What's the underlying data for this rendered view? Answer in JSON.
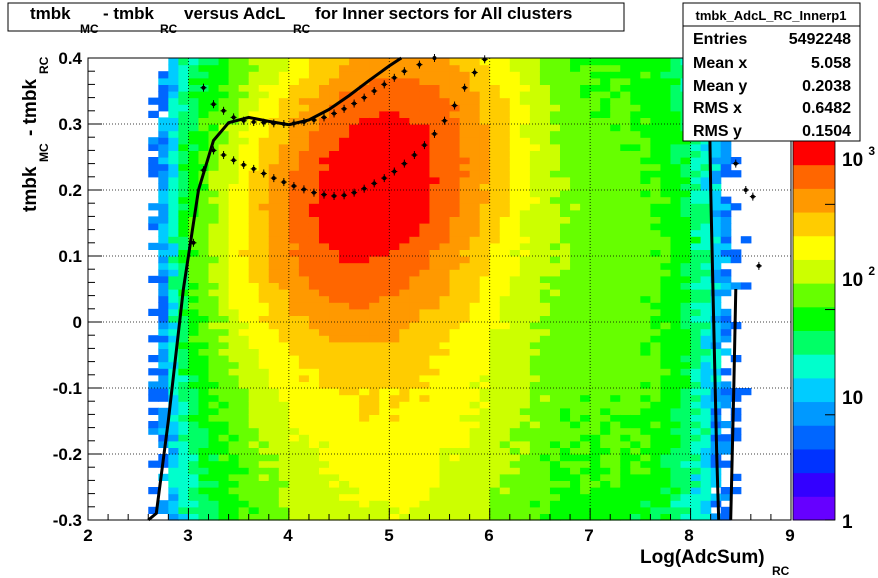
{
  "chart_data": {
    "type": "heatmap",
    "title_parts": [
      "tmbk",
      "MC",
      "- tmbk",
      "RC",
      "versus AdcL",
      "RC",
      "for Inner sectors for All clusters"
    ],
    "xlabel_parts": [
      "Log(AdcSum)",
      "RC"
    ],
    "ylabel_parts": [
      "tmbk",
      "MC",
      "- tmbk",
      "RC"
    ],
    "xlim": [
      2,
      9
    ],
    "ylim": [
      -0.3,
      0.4
    ],
    "x_ticks": [
      "2",
      "3",
      "4",
      "5",
      "6",
      "7",
      "8",
      "9"
    ],
    "y_ticks": [
      "-0.3",
      "-0.2",
      "-0.1",
      "0",
      "0.1",
      "0.2",
      "0.3",
      "0.4"
    ],
    "grid": true,
    "colorbar": {
      "scale": "log",
      "range": [
        1,
        4000
      ],
      "ticks": [
        {
          "base": "1",
          "exp": ""
        },
        {
          "base": "10",
          "exp": ""
        },
        {
          "base": "10",
          "exp": "2"
        },
        {
          "base": "10",
          "exp": "3"
        }
      ]
    },
    "palette": [
      "#6600ff",
      "#3300ff",
      "#0033ff",
      "#0066ff",
      "#0099ff",
      "#00ccff",
      "#00ffcc",
      "#00ff66",
      "#00ff00",
      "#66ff00",
      "#ccff00",
      "#ffff00",
      "#ffcc00",
      "#ff9900",
      "#ff6600",
      "#ff0000"
    ],
    "stats": {
      "name": "tmbk_AdcL_RC_Innerp1",
      "rows": [
        {
          "label": "Entries",
          "value": "5492248"
        },
        {
          "label": "Mean x",
          "value": "5.058"
        },
        {
          "label": "Mean y",
          "value": "0.2038"
        },
        {
          "label": "RMS x",
          "value": "0.6482"
        },
        {
          "label": "RMS y",
          "value": "0.1504"
        }
      ]
    },
    "profile_points": [
      {
        "x": 3.15,
        "y": 0.355
      },
      {
        "x": 3.25,
        "y": 0.33
      },
      {
        "x": 3.35,
        "y": 0.32
      },
      {
        "x": 3.45,
        "y": 0.31
      },
      {
        "x": 3.55,
        "y": 0.305
      },
      {
        "x": 3.65,
        "y": 0.303
      },
      {
        "x": 3.75,
        "y": 0.302
      },
      {
        "x": 3.85,
        "y": 0.301
      },
      {
        "x": 3.95,
        "y": 0.3
      },
      {
        "x": 4.05,
        "y": 0.301
      },
      {
        "x": 4.15,
        "y": 0.303
      },
      {
        "x": 4.25,
        "y": 0.306
      },
      {
        "x": 4.35,
        "y": 0.31
      },
      {
        "x": 4.45,
        "y": 0.316
      },
      {
        "x": 4.55,
        "y": 0.323
      },
      {
        "x": 4.65,
        "y": 0.331
      },
      {
        "x": 4.75,
        "y": 0.34
      },
      {
        "x": 4.85,
        "y": 0.35
      },
      {
        "x": 4.95,
        "y": 0.36
      },
      {
        "x": 5.05,
        "y": 0.37
      },
      {
        "x": 5.15,
        "y": 0.38
      },
      {
        "x": 5.3,
        "y": 0.39
      },
      {
        "x": 5.45,
        "y": 0.4
      },
      {
        "x": 3.05,
        "y": 0.12
      },
      {
        "x": 3.15,
        "y": 0.23
      },
      {
        "x": 3.25,
        "y": 0.26
      },
      {
        "x": 3.35,
        "y": 0.253
      },
      {
        "x": 3.45,
        "y": 0.245
      },
      {
        "x": 3.55,
        "y": 0.238
      },
      {
        "x": 3.65,
        "y": 0.232
      },
      {
        "x": 3.75,
        "y": 0.225
      },
      {
        "x": 3.85,
        "y": 0.218
      },
      {
        "x": 3.95,
        "y": 0.212
      },
      {
        "x": 4.05,
        "y": 0.206
      },
      {
        "x": 4.15,
        "y": 0.201
      },
      {
        "x": 4.25,
        "y": 0.196
      },
      {
        "x": 4.35,
        "y": 0.193
      },
      {
        "x": 4.45,
        "y": 0.191
      },
      {
        "x": 4.55,
        "y": 0.192
      },
      {
        "x": 4.65,
        "y": 0.196
      },
      {
        "x": 4.75,
        "y": 0.202
      },
      {
        "x": 4.85,
        "y": 0.21
      },
      {
        "x": 4.95,
        "y": 0.218
      },
      {
        "x": 5.05,
        "y": 0.228
      },
      {
        "x": 5.15,
        "y": 0.24
      },
      {
        "x": 5.25,
        "y": 0.253
      },
      {
        "x": 5.35,
        "y": 0.268
      },
      {
        "x": 5.45,
        "y": 0.285
      },
      {
        "x": 5.55,
        "y": 0.305
      },
      {
        "x": 5.65,
        "y": 0.328
      },
      {
        "x": 5.75,
        "y": 0.355
      },
      {
        "x": 5.85,
        "y": 0.378
      },
      {
        "x": 5.95,
        "y": 0.398
      },
      {
        "x": 8.55,
        "y": 0.2
      },
      {
        "x": 8.62,
        "y": 0.19
      },
      {
        "x": 8.68,
        "y": 0.085
      },
      {
        "x": 8.78,
        "y": 0.31
      },
      {
        "x": 8.45,
        "y": 0.24
      }
    ],
    "fit_curves": [
      [
        {
          "x": 2.6,
          "y": -0.3
        },
        {
          "x": 2.68,
          "y": -0.29
        },
        {
          "x": 2.8,
          "y": -0.15
        },
        {
          "x": 2.95,
          "y": 0.05
        },
        {
          "x": 3.1,
          "y": 0.2
        },
        {
          "x": 3.25,
          "y": 0.275
        },
        {
          "x": 3.4,
          "y": 0.302
        },
        {
          "x": 3.6,
          "y": 0.31
        },
        {
          "x": 3.8,
          "y": 0.304
        },
        {
          "x": 4.0,
          "y": 0.299
        },
        {
          "x": 4.2,
          "y": 0.306
        },
        {
          "x": 4.4,
          "y": 0.322
        },
        {
          "x": 4.6,
          "y": 0.343
        },
        {
          "x": 4.8,
          "y": 0.366
        },
        {
          "x": 5.0,
          "y": 0.388
        },
        {
          "x": 5.12,
          "y": 0.4
        }
      ],
      [
        {
          "x": 8.18,
          "y": 0.4
        },
        {
          "x": 8.2,
          "y": 0.2
        },
        {
          "x": 8.23,
          "y": 0.0
        },
        {
          "x": 8.26,
          "y": -0.2
        },
        {
          "x": 8.28,
          "y": -0.3
        }
      ],
      [
        {
          "x": 8.45,
          "y": 0.05
        },
        {
          "x": 8.43,
          "y": -0.1
        },
        {
          "x": 8.4,
          "y": -0.3
        }
      ]
    ]
  }
}
